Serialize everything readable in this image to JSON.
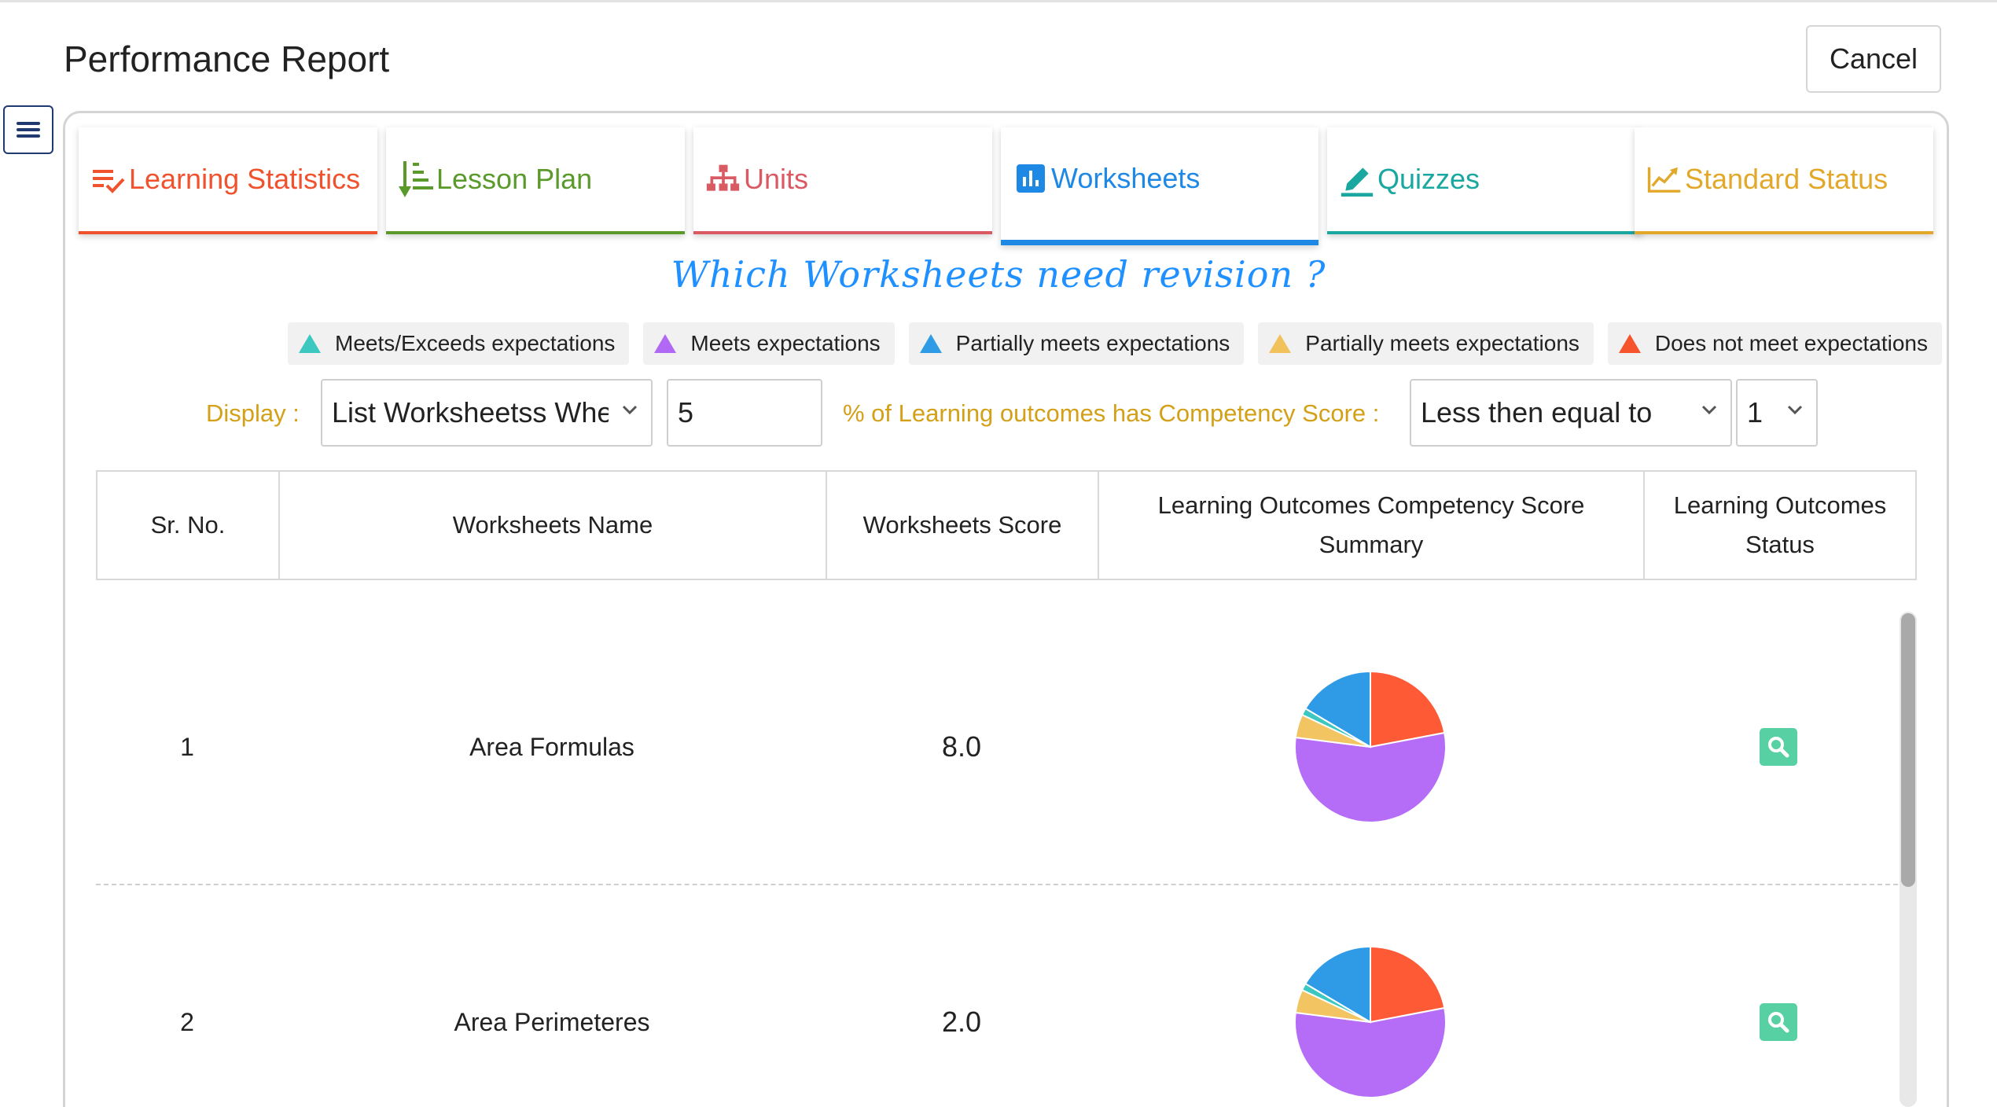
{
  "page": {
    "title": "Performance Report",
    "cancel_label": "Cancel",
    "menu_icon": "hamburger-icon"
  },
  "tabs": [
    {
      "label": "Learning Statistics",
      "icon": "checklist-icon",
      "color": "#f0522e",
      "active": false
    },
    {
      "label": "Lesson Plan",
      "icon": "sort-list-icon",
      "color": "#5a9a2b",
      "active": false
    },
    {
      "label": "Units",
      "icon": "hierarchy-icon",
      "color": "#d95a63",
      "active": false
    },
    {
      "label": "Worksheets",
      "icon": "bar-chart-icon",
      "color": "#1e88e5",
      "active": true
    },
    {
      "label": "Quizzes",
      "icon": "pen-icon",
      "color": "#1aa7a0",
      "active": false
    },
    {
      "label": "Standard Status",
      "icon": "trend-chart-icon",
      "color": "#e2a82a",
      "active": false
    }
  ],
  "headline": "Which Worksheets need revision ?",
  "legend": [
    {
      "label": "Meets/Exceeds expectations",
      "color": "#3cc7c0"
    },
    {
      "label": "Meets expectations",
      "color": "#b169f5"
    },
    {
      "label": "Partially meets expectations",
      "color": "#2f9be6"
    },
    {
      "label": "Partially meets expectations",
      "color": "#f1c25b"
    },
    {
      "label": "Does not meet expectations",
      "color": "#f5542c"
    }
  ],
  "filters": {
    "display_label": "Display :",
    "list_select_value": "List Worksheetss Whe",
    "percent_value": "5",
    "condition_label": "% of Learning outcomes has Competency Score :",
    "comparison_value": "Less then equal to",
    "score_value": "1"
  },
  "table": {
    "headers": {
      "sr_no": "Sr. No.",
      "name": "Worksheets Name",
      "score": "Worksheets Score",
      "summary": "Learning Outcomes Competency Score Summary",
      "status": "Learning Outcomes Status"
    },
    "rows": [
      {
        "sr_no": "1",
        "name": "Area Formulas",
        "score": "8.0"
      },
      {
        "sr_no": "2",
        "name": "Area Perimeteres",
        "score": "2.0"
      }
    ]
  },
  "chart_data": [
    {
      "type": "pie",
      "slices": [
        {
          "label": "Does not meet expectations",
          "value": 22,
          "color": "#ff5a36"
        },
        {
          "label": "Meets expectations",
          "value": 55,
          "color": "#b56cf7"
        },
        {
          "label": "Partially meets expectations",
          "value": 5,
          "color": "#f2c462"
        },
        {
          "label": "Meets/Exceeds expectations",
          "value": 1.5,
          "color": "#3cc7c0"
        },
        {
          "label": "Partially meets expectations",
          "value": 16.5,
          "color": "#2f9be6"
        }
      ]
    },
    {
      "type": "pie",
      "slices": [
        {
          "label": "Does not meet expectations",
          "value": 22,
          "color": "#ff5a36"
        },
        {
          "label": "Meets expectations",
          "value": 55,
          "color": "#b56cf7"
        },
        {
          "label": "Partially meets expectations",
          "value": 5,
          "color": "#f2c462"
        },
        {
          "label": "Meets/Exceeds expectations",
          "value": 1.5,
          "color": "#3cc7c0"
        },
        {
          "label": "Partially meets expectations",
          "value": 16.5,
          "color": "#2f9be6"
        }
      ]
    }
  ]
}
